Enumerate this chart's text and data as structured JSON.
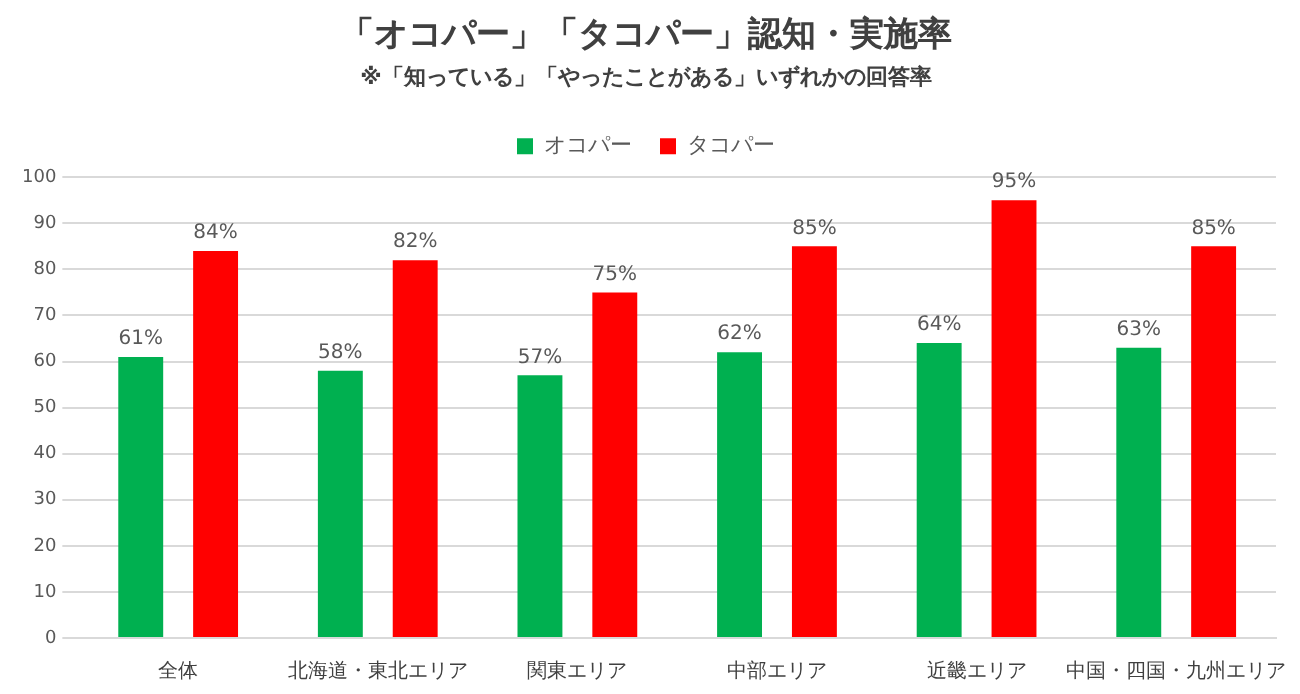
{
  "chart_data": {
    "type": "bar",
    "title": "「オコパー」「タコパー」認知・実施率",
    "subtitle": "※「知っている」「やったことがある」いずれかの回答率",
    "categories": [
      "全体",
      "北海道・東北エリア",
      "関東エリア",
      "中部エリア",
      "近畿エリア",
      "中国・四国・九州エリア"
    ],
    "series": [
      {
        "name": "オコパー",
        "color": "#00b050",
        "values": [
          61,
          58,
          57,
          62,
          64,
          63
        ],
        "value_labels": [
          "61%",
          "58%",
          "57%",
          "62%",
          "64%",
          "63%"
        ]
      },
      {
        "name": "タコパー",
        "color": "#ff0000",
        "values": [
          84,
          82,
          75,
          85,
          95,
          85
        ],
        "value_labels": [
          "84%",
          "82%",
          "75%",
          "85%",
          "95%",
          "85%"
        ]
      }
    ],
    "ylim": [
      0,
      100
    ],
    "yticks": [
      0,
      10,
      20,
      30,
      40,
      50,
      60,
      70,
      80,
      90,
      100
    ],
    "grid": "y",
    "legend": "top"
  }
}
